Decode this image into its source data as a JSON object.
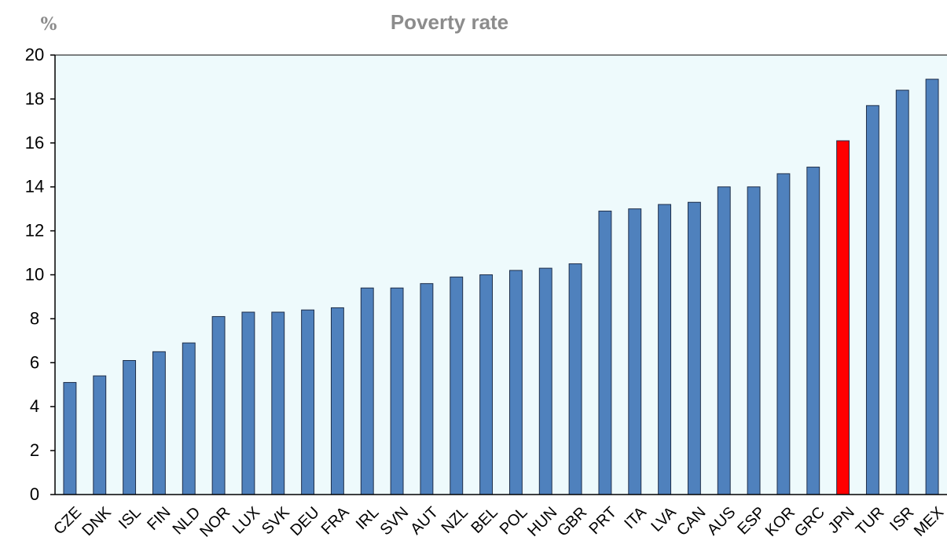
{
  "chart_data": {
    "type": "bar",
    "title": "Poverty rate",
    "unit_label": "%",
    "xlabel": "",
    "ylabel": "",
    "ylim": [
      0,
      20
    ],
    "yticks": [
      "0",
      "2",
      "4",
      "6",
      "8",
      "10",
      "12",
      "14",
      "16",
      "18",
      "20"
    ],
    "grid": false,
    "categories": [
      "CZE",
      "DNK",
      "ISL",
      "FIN",
      "NLD",
      "NOR",
      "LUX",
      "SVK",
      "DEU",
      "FRA",
      "IRL",
      "SVN",
      "AUT",
      "NZL",
      "BEL",
      "POL",
      "HUN",
      "GBR",
      "PRT",
      "ITA",
      "LVA",
      "CAN",
      "AUS",
      "ESP",
      "KOR",
      "GRC",
      "JPN",
      "TUR",
      "ISR",
      "MEX"
    ],
    "values": [
      5.1,
      5.4,
      6.1,
      6.5,
      6.9,
      8.1,
      8.3,
      8.3,
      8.4,
      8.5,
      9.4,
      9.4,
      9.6,
      9.9,
      10.0,
      10.2,
      10.3,
      10.5,
      12.9,
      13.0,
      13.2,
      13.3,
      14.0,
      14.0,
      14.6,
      14.9,
      16.1,
      17.7,
      18.4,
      18.9
    ],
    "highlight": "JPN",
    "colors": {
      "bar": "#4f81bd",
      "bar_stroke": "#1f2f4a",
      "highlight": "#ff0000",
      "plot_background": "#eefafc",
      "title": "#8c8c8c"
    }
  }
}
